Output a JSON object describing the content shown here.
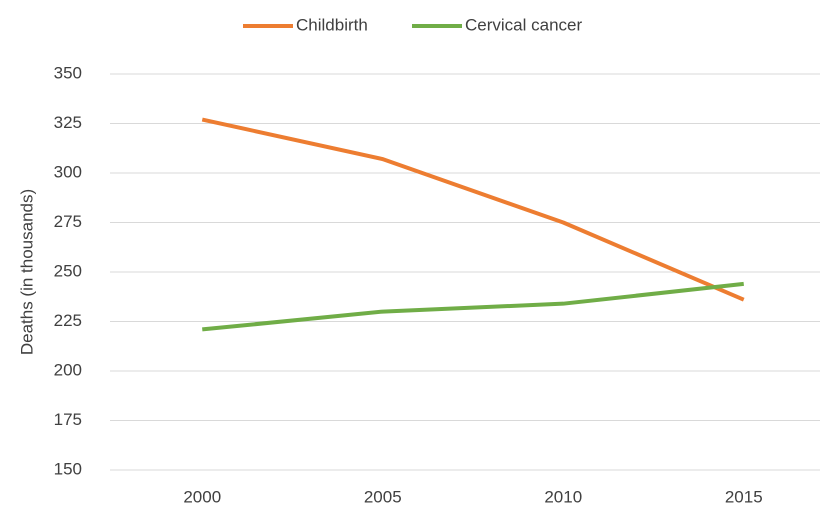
{
  "chart_data": {
    "type": "line",
    "y_label": "Deaths (in thousands)",
    "categories": [
      "2000",
      "2005",
      "2010",
      "2015"
    ],
    "series": [
      {
        "name": "Childbirth",
        "color": "#ed7d31",
        "values": [
          327,
          307,
          275,
          236
        ]
      },
      {
        "name": "Cervical cancer",
        "color": "#70ad47",
        "values": [
          221,
          230,
          234,
          244
        ]
      }
    ],
    "ylim": [
      150,
      350
    ],
    "yticks": [
      150,
      175,
      200,
      225,
      250,
      275,
      300,
      325,
      350
    ],
    "grid": true,
    "legend": "top"
  }
}
